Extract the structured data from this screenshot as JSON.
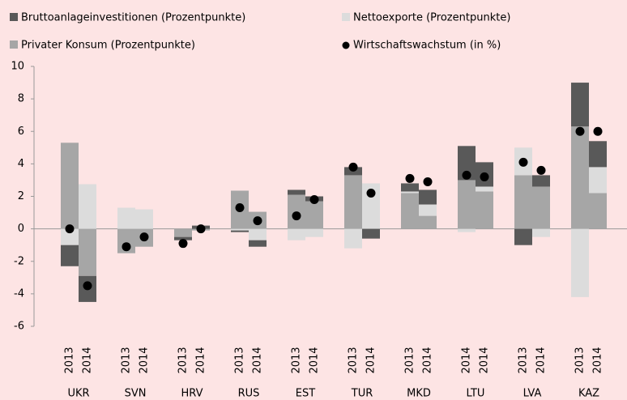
{
  "chart_data": {
    "type": "bar",
    "categories": [
      "2013",
      "2014",
      "2013",
      "2014",
      "2013",
      "2014",
      "2013",
      "2014",
      "2013",
      "2014",
      "2013",
      "2014",
      "2013",
      "2014",
      "2014",
      "2014",
      "2013",
      "2014",
      "2013",
      "2014"
    ],
    "groups": [
      "UKR",
      "SVN",
      "HRV",
      "RUS",
      "EST",
      "TUR",
      "MKD",
      "LTU",
      "LVA",
      "KAZ"
    ],
    "series": [
      {
        "name": "Privater Konsum (Prozentpunkte)",
        "color": "#a6a6a6",
        "values": [
          5.3,
          -2.9,
          -1.5,
          -1.1,
          -0.5,
          -0.1,
          2.35,
          1.05,
          2.1,
          1.7,
          3.3,
          0,
          2.2,
          0.8,
          3.0,
          2.3,
          3.3,
          2.6,
          6.3,
          2.2
        ]
      },
      {
        "name": "Nettoexporte (Prozentpunkte)",
        "color": "#dcdcdc",
        "values": [
          -1.0,
          2.75,
          1.3,
          1.2,
          0,
          0,
          -0.1,
          -0.7,
          -0.7,
          -0.5,
          -1.2,
          2.8,
          0.1,
          0.7,
          -0.2,
          0.3,
          1.7,
          -0.5,
          -4.2,
          1.6
        ]
      },
      {
        "name": "Bruttoanlageinvestitionen (Prozentpunkte)",
        "color": "#595959",
        "values": [
          -1.3,
          -1.6,
          0,
          0,
          -0.2,
          0.2,
          -0.1,
          -0.4,
          0.3,
          0.3,
          0.5,
          -0.6,
          0.5,
          0.9,
          2.1,
          1.5,
          -1.0,
          0.7,
          2.7,
          1.6
        ]
      },
      {
        "name": "Wirtschaftswachstum (in %)",
        "color": "#000000",
        "type": "scatter",
        "values": [
          0,
          -3.5,
          -1.1,
          -0.5,
          -0.9,
          0,
          1.3,
          0.5,
          0.8,
          1.8,
          3.8,
          2.2,
          3.1,
          2.9,
          3.3,
          3.2,
          4.1,
          3.6,
          6.0,
          6.0
        ]
      }
    ],
    "ylim": [
      -6,
      10
    ],
    "yticks": [
      -6,
      -4,
      -2,
      0,
      2,
      4,
      6,
      8,
      10
    ]
  }
}
